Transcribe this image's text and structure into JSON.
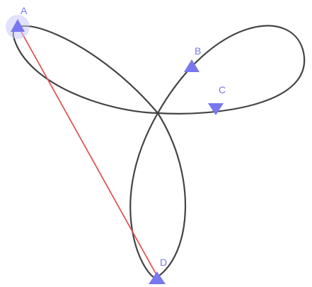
{
  "colors": {
    "curve": "#444444",
    "segment": "#e05555",
    "point": "#7777f0",
    "label": "#7777f0",
    "highlight": "#c8c8f5"
  },
  "points": [
    {
      "id": "A",
      "label": "A",
      "selected": true
    },
    {
      "id": "B",
      "label": "B",
      "selected": false
    },
    {
      "id": "C",
      "label": "C",
      "selected": false
    },
    {
      "id": "D",
      "label": "D",
      "selected": false
    }
  ],
  "segment": {
    "from": "A",
    "to": "D"
  }
}
